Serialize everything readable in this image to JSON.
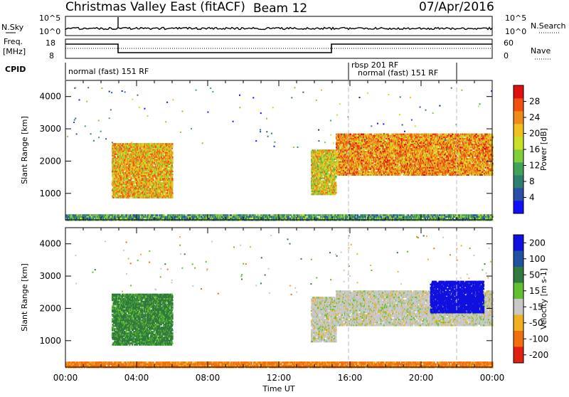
{
  "header": {
    "title": "Christmas Valley East (fitACF)",
    "beam": "Beam 12",
    "date": "07/Apr/2016"
  },
  "status_panels": {
    "nsky": {
      "label": "N.Sky",
      "tick_top": "10^5",
      "tick_bottom": "10^0",
      "right_label": "N.Search",
      "right_top": "10^5",
      "right_bottom": "10^0"
    },
    "freq": {
      "label_top": "Freq.",
      "label_bottom": "[MHz]",
      "tick_top": "18",
      "tick_bottom": "8",
      "right_label": "Nave",
      "right_top": "60",
      "right_bottom": "0"
    },
    "cpid": {
      "label": "CPID",
      "segments": [
        "normal (fast) 151 RF",
        "rbsp 201 RF",
        "normal (fast) 151 RF"
      ]
    }
  },
  "x_axis": {
    "label": "Time UT",
    "ticks": [
      "00:00",
      "04:00",
      "08:00",
      "12:00",
      "16:00",
      "20:00",
      "00:00"
    ]
  },
  "power_panel": {
    "ylabel": "Slant Range [km]",
    "yticks": [
      "1000",
      "2000",
      "3000",
      "4000"
    ],
    "colorbar_label": "Power [dB]",
    "colorbar_ticks": [
      "4",
      "8",
      "12",
      "16",
      "20",
      "24",
      "28"
    ]
  },
  "velocity_panel": {
    "ylabel": "Slant Range [km]",
    "yticks": [
      "1000",
      "2000",
      "3000",
      "4000"
    ],
    "colorbar_label": "Velocity [m s-1]",
    "colorbar_ticks": [
      "200",
      "100",
      "50",
      "15",
      "-15",
      "-50",
      "-100",
      "-200"
    ]
  },
  "colors": {
    "power_scale": [
      "#1010ff",
      "#2a4fa8",
      "#2f7f70",
      "#3fa35a",
      "#7fce3c",
      "#c8e02a",
      "#f0c020",
      "#f08a18",
      "#f05010",
      "#e01010"
    ],
    "velocity_scale": [
      "#1010e0",
      "#2050a0",
      "#2f7a3c",
      "#60c030",
      "#c8c8c8",
      "#f0b020",
      "#f07010",
      "#e02010"
    ]
  },
  "chart_data": [
    {
      "type": "heatmap",
      "title": "Power",
      "xlabel": "Time UT",
      "ylabel": "Slant Range [km]",
      "x_range_hours": [
        0,
        24
      ],
      "y_range_km": [
        180,
        4500
      ],
      "colorbar": {
        "label": "Power [dB]",
        "range": [
          0,
          30
        ]
      },
      "echo_regions": [
        {
          "t_start": 2.6,
          "t_end": 6.0,
          "r_low": 900,
          "r_high": 2600,
          "typical_power_db": 20
        },
        {
          "t_start": 13.8,
          "t_end": 15.2,
          "r_low": 1000,
          "r_high": 2400,
          "typical_power_db": 18
        },
        {
          "t_start": 15.2,
          "t_end": 24.0,
          "r_low": 1600,
          "r_high": 2900,
          "typical_power_db": 22
        },
        {
          "t_start": 0.0,
          "t_end": 24.0,
          "r_low": 200,
          "r_high": 400,
          "typical_power_db": 10
        }
      ]
    },
    {
      "type": "heatmap",
      "title": "Velocity",
      "xlabel": "Time UT",
      "ylabel": "Slant Range [km]",
      "x_range_hours": [
        0,
        24
      ],
      "y_range_km": [
        180,
        4500
      ],
      "colorbar": {
        "label": "Velocity [m s-1]",
        "range": [
          -200,
          200
        ]
      },
      "echo_regions": [
        {
          "t_start": 2.6,
          "t_end": 6.0,
          "r_low": 900,
          "r_high": 2500,
          "typical_velocity": 40
        },
        {
          "t_start": 13.8,
          "t_end": 15.2,
          "r_low": 1000,
          "r_high": 2400,
          "typical_velocity": 0
        },
        {
          "t_start": 15.2,
          "t_end": 24.0,
          "r_low": 1500,
          "r_high": 2600,
          "typical_velocity": 0
        },
        {
          "t_start": 20.5,
          "t_end": 23.5,
          "r_low": 1900,
          "r_high": 2900,
          "typical_velocity": 220
        },
        {
          "t_start": 0.0,
          "t_end": 24.0,
          "r_low": 200,
          "r_high": 400,
          "typical_velocity": -40
        }
      ]
    }
  ]
}
